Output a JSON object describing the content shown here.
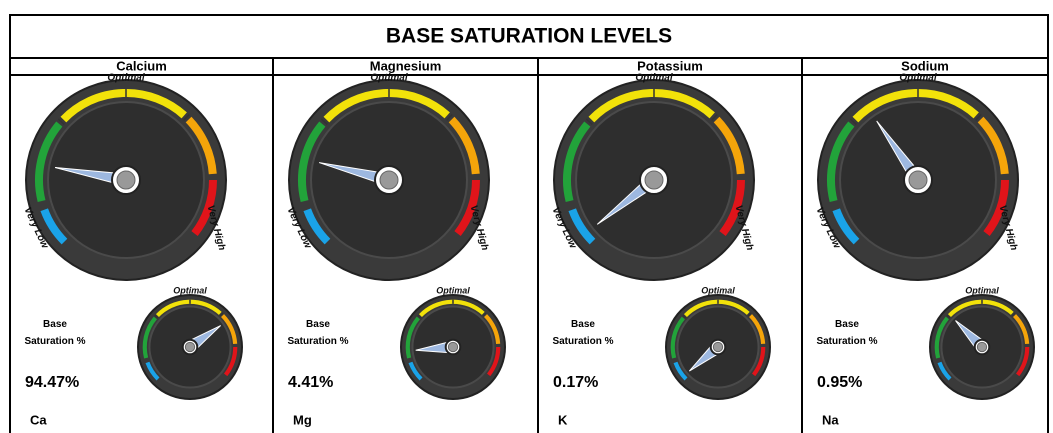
{
  "title": "BASE SATURATION LEVELS",
  "gauge_labels": {
    "optimal": "Optimal",
    "very_low": "Very Low",
    "very_high": "Very High"
  },
  "base_label": "Base Saturation %",
  "panels": [
    {
      "name": "Calcium",
      "value": "94.47%",
      "symbol": "Ca"
    },
    {
      "name": "Magnesium",
      "value": "4.41%",
      "symbol": "Mg"
    },
    {
      "name": "Potassium",
      "value": "0.17%",
      "symbol": "K"
    },
    {
      "name": "Sodium",
      "value": "0.95%",
      "symbol": "Na"
    }
  ]
}
